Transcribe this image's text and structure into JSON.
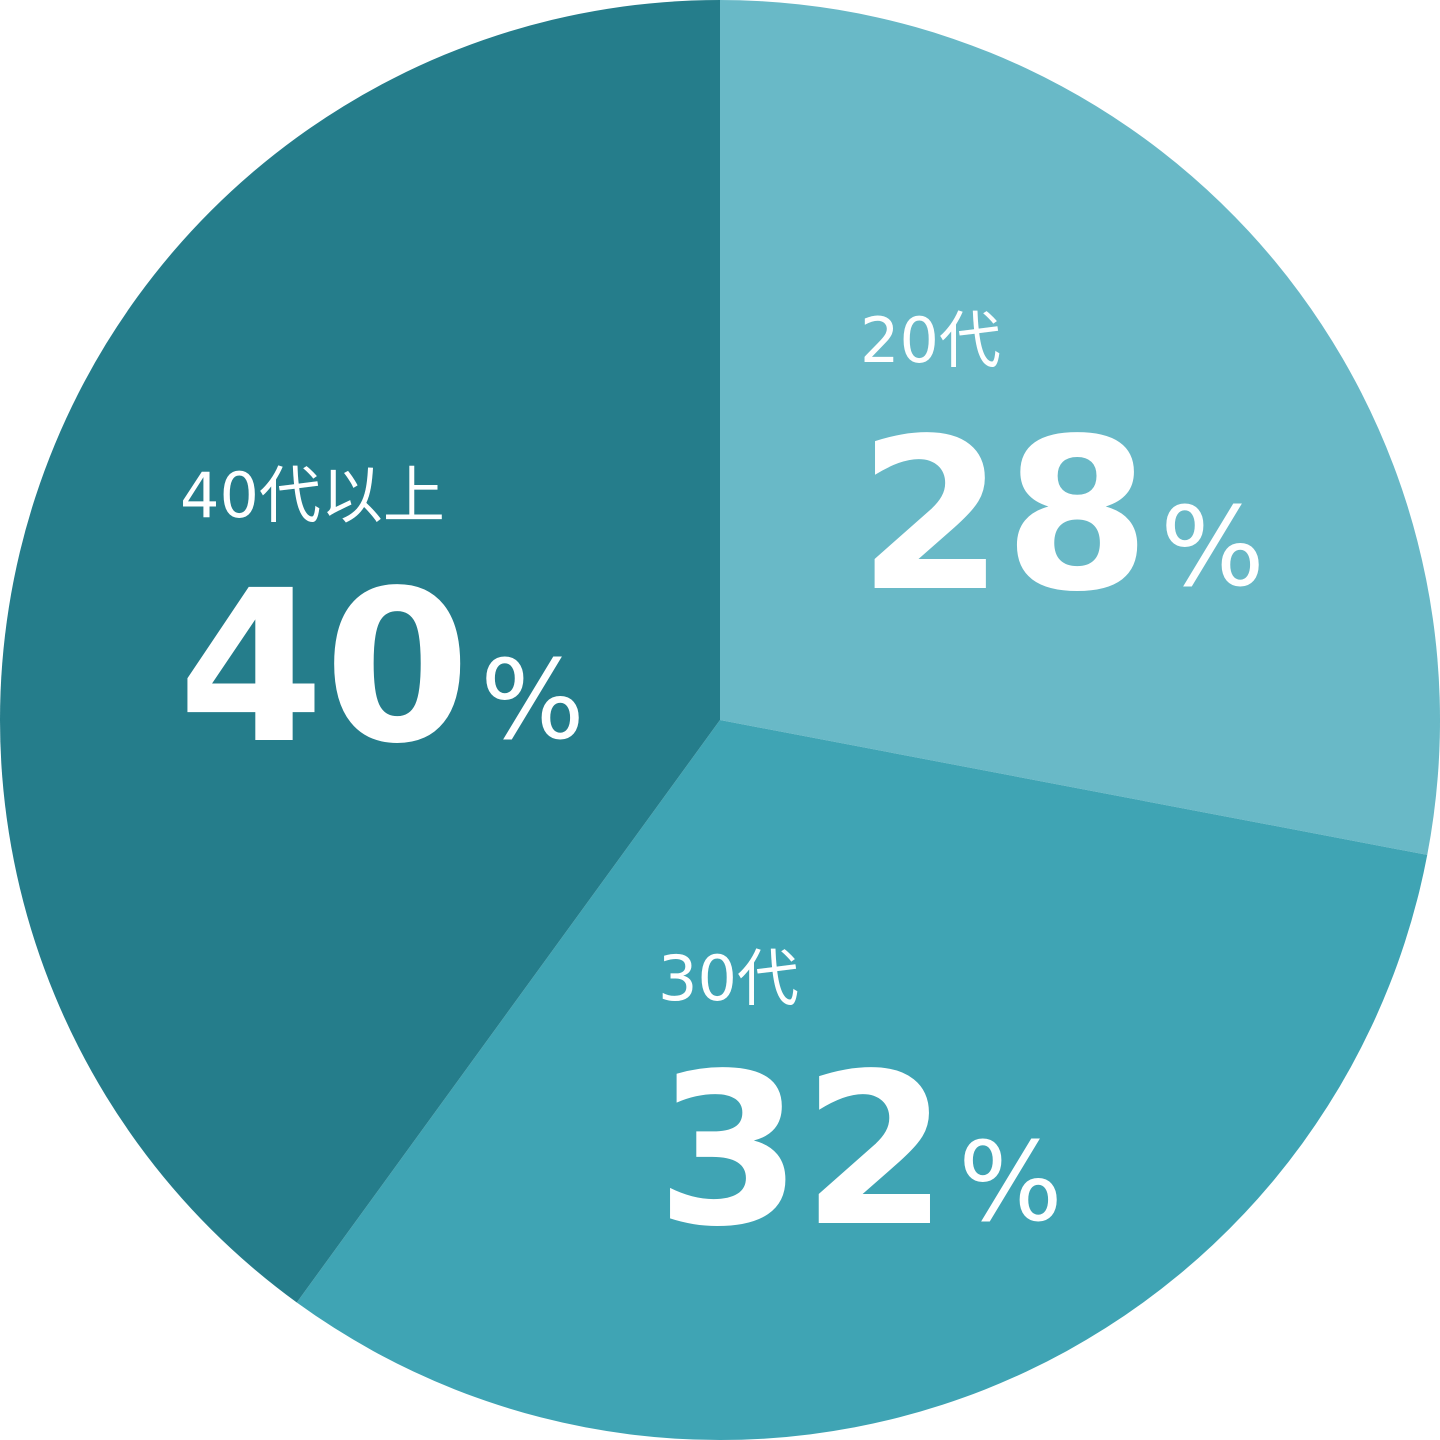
{
  "chart_data": {
    "type": "pie",
    "start_angle": "12 o'clock",
    "direction": "clockwise",
    "unit": "%",
    "slices": [
      {
        "label": "20代",
        "value": 28,
        "color": "#69b9c7"
      },
      {
        "label": "30代",
        "value": 32,
        "color": "#3fa4b4"
      },
      {
        "label": "40代以上",
        "value": 40,
        "color": "#257d8b"
      }
    ]
  }
}
